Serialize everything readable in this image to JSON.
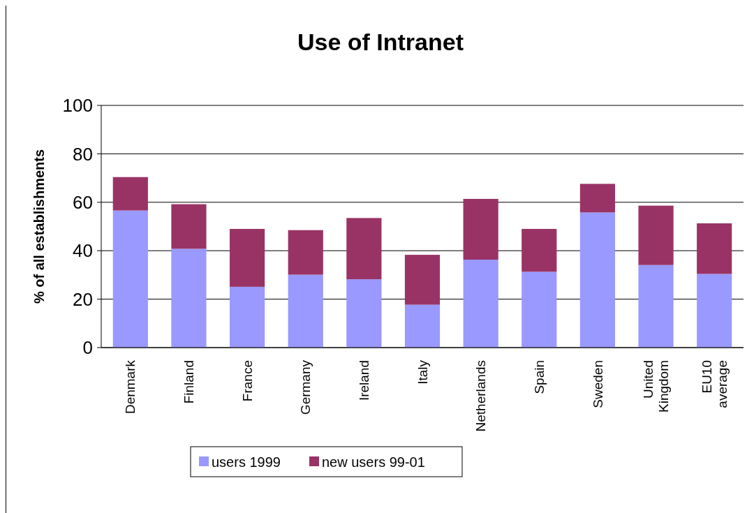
{
  "chart_data": {
    "type": "bar",
    "title": "Use of Intranet",
    "ylabel": "% of all establishments",
    "categories": [
      "Denmark",
      "Finland",
      "France",
      "Germany",
      "Ireland",
      "Italy",
      "Netherlands",
      "Spain",
      "Sweden",
      "United Kingdom",
      "EU10 average"
    ],
    "series": [
      {
        "name": "users 1999",
        "color": "#9999ff",
        "values": [
          56.6,
          40.8,
          25.1,
          30.1,
          28.2,
          17.7,
          36.3,
          31.3,
          55.8,
          34.1,
          30.4
        ]
      },
      {
        "name": "new users 99-01",
        "color": "#993366",
        "values": [
          13.8,
          18.4,
          23.9,
          18.4,
          25.3,
          20.6,
          25.1,
          17.7,
          11.8,
          24.5,
          20.9
        ]
      }
    ],
    "stacked": true,
    "ylim": [
      0,
      100
    ],
    "yticks": [
      0,
      20,
      40,
      60,
      80,
      100
    ],
    "grid": "y",
    "legend": "bottom"
  }
}
